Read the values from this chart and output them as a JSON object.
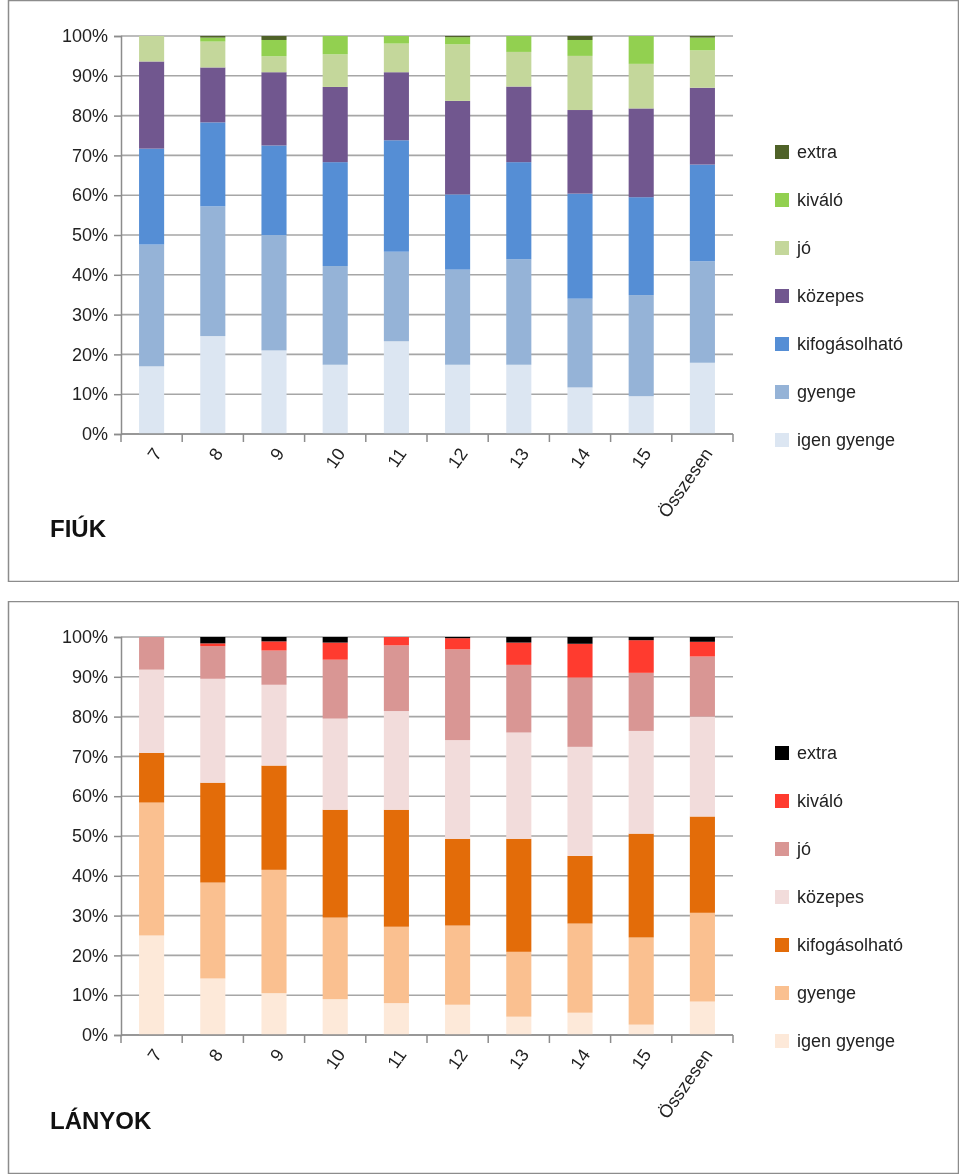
{
  "chart_data": [
    {
      "type": "bar",
      "title": "FIÚK",
      "stacked": true,
      "categories": [
        "7",
        "8",
        "9",
        "10",
        "11",
        "12",
        "13",
        "14",
        "15",
        "Összesen"
      ],
      "series": [
        {
          "name": "igen gyenge",
          "color": "#dce6f2",
          "values": [
            17.0,
            24.6,
            21.0,
            17.4,
            23.3,
            17.4,
            17.4,
            11.7,
            9.5,
            17.9
          ]
        },
        {
          "name": "gyenge",
          "color": "#95b3d7",
          "values": [
            30.6,
            32.6,
            29.0,
            24.8,
            22.5,
            23.9,
            26.5,
            22.3,
            25.4,
            25.5
          ]
        },
        {
          "name": "kifogásolható",
          "color": "#558ed5",
          "values": [
            24.1,
            21.1,
            22.5,
            26.1,
            28.0,
            18.9,
            24.4,
            26.4,
            24.6,
            24.3
          ]
        },
        {
          "name": "közepes",
          "color": "#71578f",
          "values": [
            21.9,
            13.8,
            18.4,
            18.9,
            17.1,
            23.5,
            19.0,
            21.0,
            22.3,
            19.3
          ]
        },
        {
          "name": "jó",
          "color": "#c4d79b",
          "values": [
            6.4,
            6.5,
            4.0,
            8.2,
            7.2,
            14.2,
            8.7,
            13.6,
            11.2,
            9.4
          ]
        },
        {
          "name": "kiváló",
          "color": "#92d050",
          "values": [
            0,
            1.0,
            4.1,
            4.6,
            1.9,
            1.8,
            4.0,
            4.0,
            7.0,
            3.2
          ]
        },
        {
          "name": "extra",
          "color": "#4f6228",
          "values": [
            0,
            0.4,
            1.0,
            0,
            0,
            0.3,
            0,
            1.0,
            0,
            0.4
          ]
        }
      ],
      "ylim": [
        0,
        100
      ],
      "yticks": [
        {
          "value": 0,
          "label": "0%"
        },
        {
          "value": 10,
          "label": "10%"
        },
        {
          "value": 20,
          "label": "20%"
        },
        {
          "value": 30,
          "label": "30%"
        },
        {
          "value": 40,
          "label": "40%"
        },
        {
          "value": 50,
          "label": "50%"
        },
        {
          "value": 60,
          "label": "60%"
        },
        {
          "value": 70,
          "label": "70%"
        },
        {
          "value": 80,
          "label": "80%"
        },
        {
          "value": 90,
          "label": "90%"
        },
        {
          "value": 100,
          "label": "100%"
        }
      ],
      "grid": "y",
      "legend": "right"
    },
    {
      "type": "bar",
      "title": "LÁNYOK",
      "stacked": true,
      "categories": [
        "7",
        "8",
        "9",
        "10",
        "11",
        "12",
        "13",
        "14",
        "15",
        "Összesen"
      ],
      "series": [
        {
          "name": "igen gyenge",
          "color": "#fde9d9",
          "values": [
            25.0,
            14.2,
            10.5,
            9.0,
            8.0,
            7.6,
            4.6,
            5.6,
            2.6,
            8.4
          ]
        },
        {
          "name": "gyenge",
          "color": "#fac090",
          "values": [
            33.4,
            24.1,
            31.0,
            20.5,
            19.2,
            19.9,
            16.3,
            22.4,
            21.9,
            22.3
          ]
        },
        {
          "name": "kifogásolható",
          "color": "#e36c09",
          "values": [
            12.5,
            25.1,
            26.2,
            27.1,
            29.4,
            21.8,
            28.4,
            17.0,
            26.1,
            24.2
          ]
        },
        {
          "name": "közepes",
          "color": "#f2dcdb",
          "values": [
            20.9,
            26.1,
            20.3,
            22.9,
            24.8,
            24.8,
            26.7,
            27.4,
            25.8,
            25.1
          ]
        },
        {
          "name": "jó",
          "color": "#d99694",
          "values": [
            8.2,
            8.2,
            8.6,
            14.8,
            16.5,
            22.8,
            17.0,
            17.4,
            14.6,
            15.1
          ]
        },
        {
          "name": "kiváló",
          "color": "#ff3b2f",
          "values": [
            0,
            0.7,
            2.3,
            4.3,
            2.1,
            2.8,
            5.6,
            8.5,
            8.2,
            3.7
          ]
        },
        {
          "name": "extra",
          "color": "#000000",
          "values": [
            0,
            1.6,
            1.1,
            1.4,
            0,
            0.3,
            1.4,
            1.7,
            0.8,
            1.2
          ]
        }
      ],
      "ylim": [
        0,
        100
      ],
      "yticks": [
        {
          "value": 0,
          "label": "0%"
        },
        {
          "value": 10,
          "label": "10%"
        },
        {
          "value": 20,
          "label": "20%"
        },
        {
          "value": 30,
          "label": "30%"
        },
        {
          "value": 40,
          "label": "40%"
        },
        {
          "value": 50,
          "label": "50%"
        },
        {
          "value": 60,
          "label": "60%"
        },
        {
          "value": 70,
          "label": "70%"
        },
        {
          "value": 80,
          "label": "80%"
        },
        {
          "value": 90,
          "label": "90%"
        },
        {
          "value": 100,
          "label": "100%"
        }
      ],
      "grid": "y",
      "legend": "right"
    }
  ]
}
